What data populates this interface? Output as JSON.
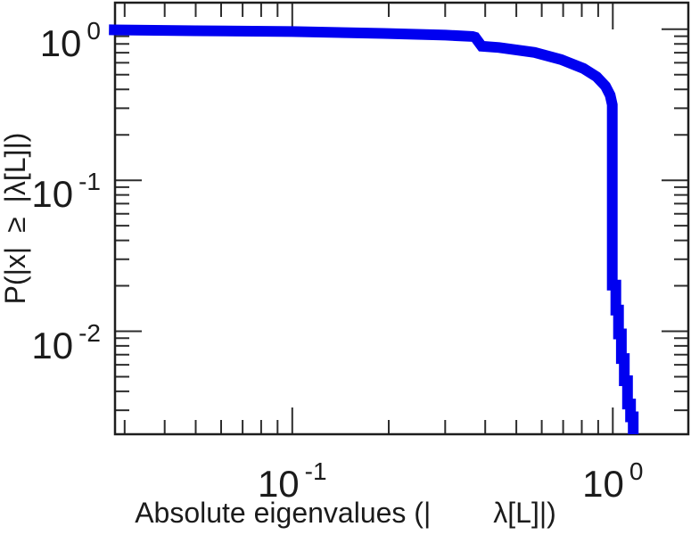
{
  "chart_data": {
    "type": "line",
    "subtype": "ccdf-staircase-loglog",
    "title": "",
    "xlabel_parts": [
      "Absolute eigenvalues (|",
      "λ[L]|)"
    ],
    "ylabel": "P(|x| ≥ |λ[L]|)",
    "grid": false,
    "legend": "none",
    "x_axis": {
      "scale": "log",
      "range": [
        0.028,
        1.72
      ],
      "major_ticks": [
        0.1,
        1
      ],
      "minor_ticks": [
        0.03,
        0.04,
        0.05,
        0.06,
        0.07,
        0.08,
        0.09,
        0.2,
        0.3,
        0.4,
        0.5,
        0.6,
        0.7,
        0.8,
        0.9
      ],
      "tick_labels": [
        {
          "value": 0.1,
          "base": "10",
          "exp": "-1"
        },
        {
          "value": 1,
          "base": "10",
          "exp": "0"
        }
      ]
    },
    "y_axis": {
      "scale": "log",
      "range": [
        0.00208,
        1.5
      ],
      "major_ticks": [
        1,
        0.1,
        0.01
      ],
      "minor_ticks": [
        0.9,
        0.8,
        0.7,
        0.6,
        0.5,
        0.4,
        0.3,
        0.2,
        0.09,
        0.08,
        0.07,
        0.06,
        0.05,
        0.04,
        0.03,
        0.02,
        0.009,
        0.008,
        0.007,
        0.006,
        0.005,
        0.004,
        0.003
      ],
      "tick_labels": [
        {
          "value": 1,
          "base": "10",
          "exp": "0"
        },
        {
          "value": 0.1,
          "base": "10",
          "exp": "-1"
        },
        {
          "value": 0.01,
          "base": "10",
          "exp": "-2"
        }
      ]
    },
    "series": [
      {
        "name": "eigenvalue-ccdf",
        "color": "#0000f0",
        "stroke_width": 12,
        "points": [
          [
            0.0268,
            0.992
          ],
          [
            0.05,
            0.978
          ],
          [
            0.1,
            0.965
          ],
          [
            0.193,
            0.938
          ],
          [
            0.301,
            0.914
          ],
          [
            0.365,
            0.896
          ],
          [
            0.372,
            0.885
          ],
          [
            0.39,
            0.772
          ],
          [
            0.442,
            0.757
          ],
          [
            0.57,
            0.702
          ],
          [
            0.69,
            0.63
          ],
          [
            0.81,
            0.55
          ],
          [
            0.891,
            0.484
          ],
          [
            0.949,
            0.42
          ],
          [
            0.981,
            0.366
          ],
          [
            0.996,
            0.316
          ],
          [
            0.996,
            0.0202
          ],
          [
            1.022,
            0.0202
          ],
          [
            1.022,
            0.0138
          ],
          [
            1.042,
            0.0138
          ],
          [
            1.042,
            0.0096
          ],
          [
            1.063,
            0.0096
          ],
          [
            1.063,
            0.0066
          ],
          [
            1.086,
            0.0066
          ],
          [
            1.086,
            0.0047
          ],
          [
            1.111,
            0.0047
          ],
          [
            1.111,
            0.0033
          ],
          [
            1.136,
            0.0033
          ],
          [
            1.136,
            0.00271
          ],
          [
            1.158,
            0.00271
          ],
          [
            1.158,
            0.0017
          ]
        ]
      }
    ],
    "colors": {
      "curve": "#0000f0",
      "axis": "#2d2d2d",
      "text": "#1b1b1b",
      "background": "#ffffff"
    }
  }
}
